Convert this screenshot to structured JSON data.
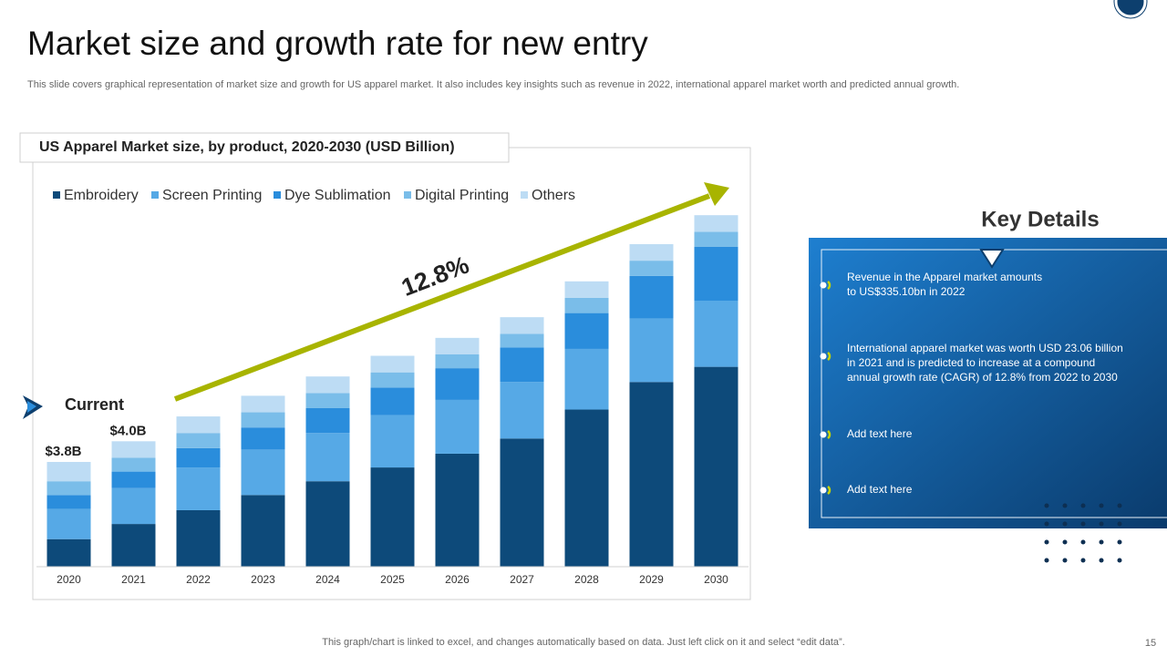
{
  "header": {
    "title": "Market size and growth rate for new entry",
    "subtitle": "This slide covers graphical representation of  market size and growth  for US apparel market. It also includes  key insights such as revenue in 2022, international apparel market worth and predicted annual growth."
  },
  "chart_data": {
    "type": "stacked_bar",
    "title": "US Apparel Market size, by product, 2020-2030 (USD Billion)",
    "categories": [
      "2020",
      "2021",
      "2022",
      "2023",
      "2024",
      "2025",
      "2026",
      "2027",
      "2028",
      "2029",
      "2030"
    ],
    "series": [
      {
        "name": "Embroidery",
        "color": "#0d4a7a",
        "values": [
          1.0,
          1.55,
          2.05,
          2.6,
          3.1,
          3.6,
          4.1,
          4.65,
          5.7,
          6.7,
          7.25
        ]
      },
      {
        "name": "Screen Printing",
        "color": "#56a9e6",
        "values": [
          1.1,
          1.3,
          1.55,
          1.65,
          1.75,
          1.9,
          1.95,
          2.05,
          2.2,
          2.3,
          2.4
        ]
      },
      {
        "name": "Dye Sublimation",
        "color": "#2a8ddc",
        "values": [
          0.5,
          0.6,
          0.7,
          0.8,
          0.9,
          1.0,
          1.15,
          1.25,
          1.3,
          1.55,
          1.95
        ]
      },
      {
        "name": "Digital Printing",
        "color": "#7abde9",
        "values": [
          0.5,
          0.5,
          0.55,
          0.55,
          0.55,
          0.55,
          0.5,
          0.5,
          0.55,
          0.55,
          0.55
        ]
      },
      {
        "name": "Others",
        "color": "#bddcf4",
        "values": [
          0.7,
          0.6,
          0.6,
          0.6,
          0.6,
          0.6,
          0.6,
          0.6,
          0.6,
          0.6,
          0.6
        ]
      }
    ],
    "annotations": {
      "current": "Current",
      "totals": [
        "$3.8B",
        "$4.0B"
      ],
      "growth": "12.8%"
    }
  },
  "key_details": {
    "title": "Key Details",
    "items": [
      [
        "Revenue  in the Apparel market amounts",
        "to US$335.10bn  in 2022"
      ],
      [
        "International  apparel  market was worth USD 23.06 billion",
        "in 2021 and is predicted to increase at a compound",
        "annual growth rate (CAGR)  of 12.8% from 2022 to 2030"
      ],
      [
        "Add text here"
      ],
      [
        "Add text here"
      ]
    ]
  },
  "footer": {
    "note": "This graph/chart is linked to excel,  and changes automatically based on data. Just left click on it and select “edit data”.",
    "page": "15"
  }
}
